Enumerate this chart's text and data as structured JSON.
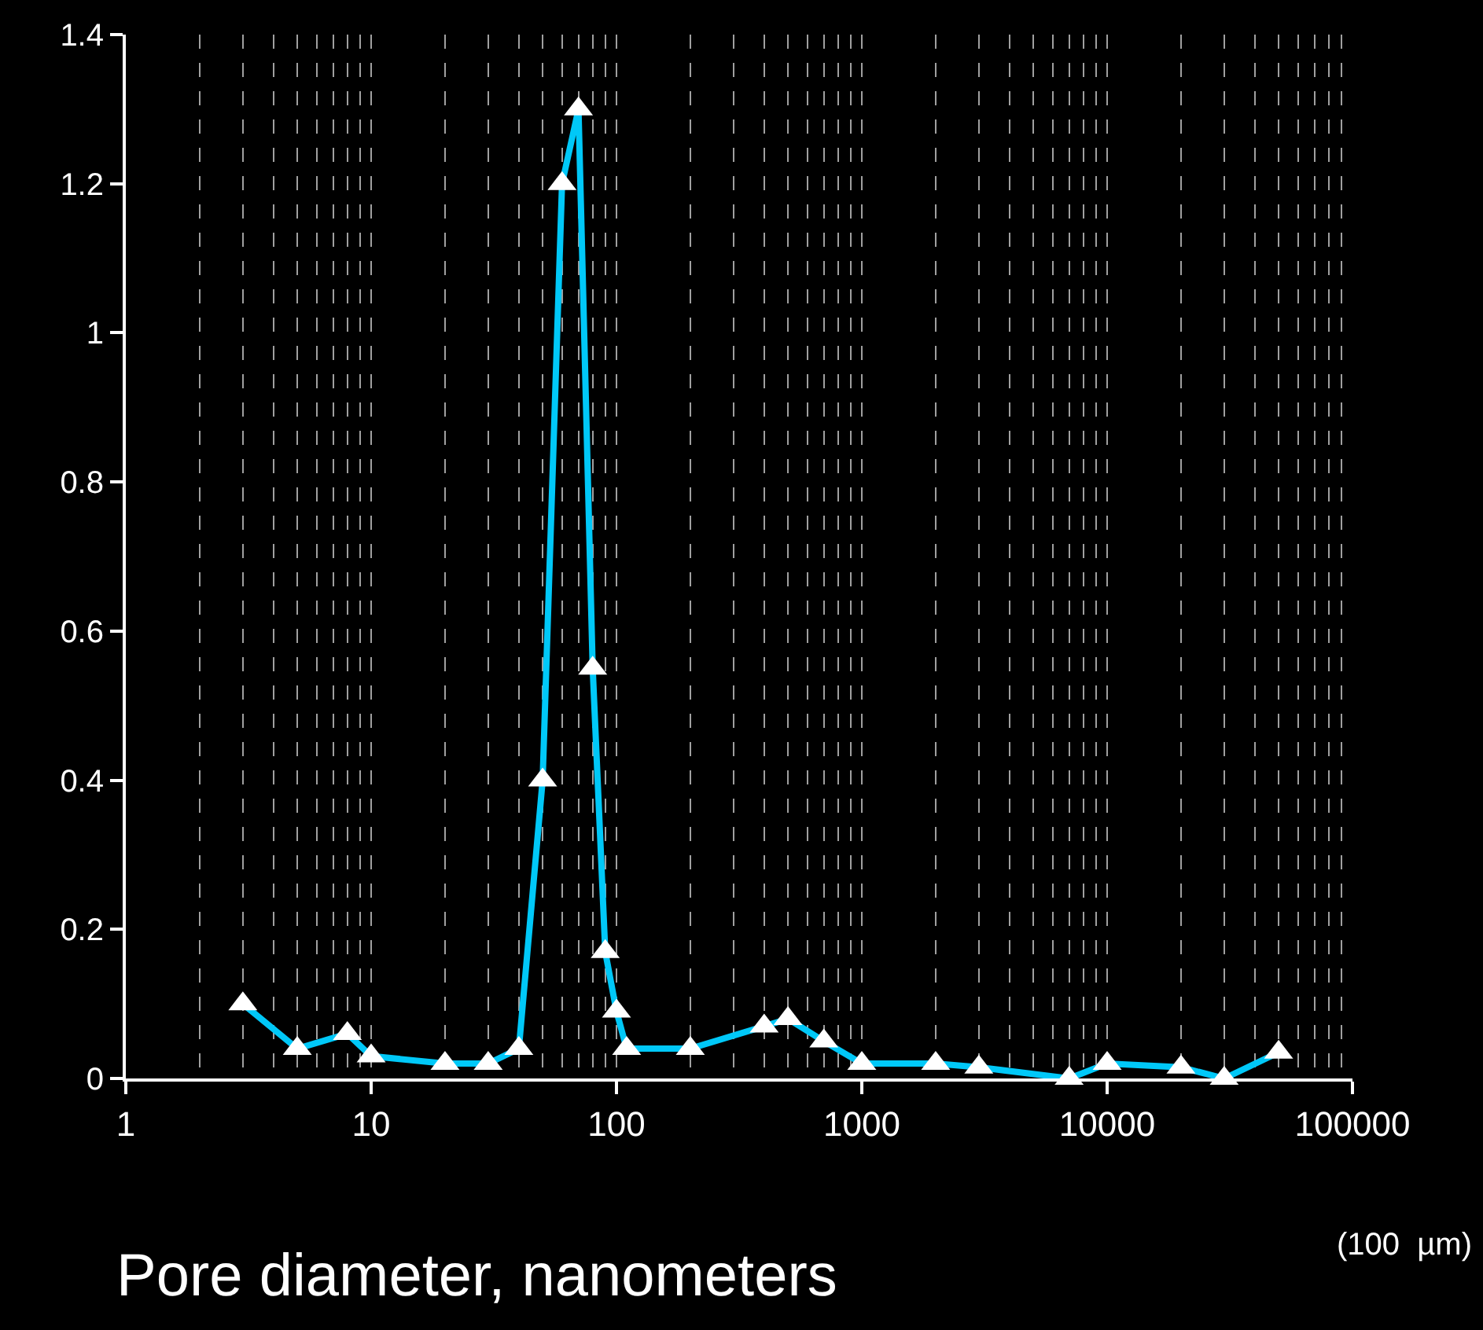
{
  "chart_data": {
    "type": "line",
    "xlabel": "Pore diameter, nanometers",
    "x": [
      3,
      5,
      8,
      10,
      20,
      30,
      40,
      50,
      60,
      70,
      80,
      90,
      100,
      110,
      200,
      400,
      500,
      700,
      1000,
      2000,
      3000,
      7000,
      10000,
      20000,
      30000,
      50000
    ],
    "series": [
      {
        "color": "#00c8f8",
        "values": [
          0.1,
          0.04,
          0.06,
          0.03,
          0.02,
          0.02,
          0.04,
          0.4,
          1.2,
          1.3,
          0.55,
          0.17,
          0.09,
          0.04,
          0.04,
          0.07,
          0.08,
          0.05,
          0.02,
          0.02,
          0.015,
          0,
          0.02,
          0.015,
          0,
          0.035
        ]
      }
    ],
    "log": "x",
    "xlim": [
      1,
      100000
    ],
    "xticks": [
      1,
      10,
      100,
      1000,
      10000,
      100000
    ],
    "ylim": [
      0,
      1.4
    ],
    "yticks": [
      0,
      0.2,
      0.4,
      0.6,
      0.8,
      1,
      1.2,
      1.4
    ],
    "grid": "x",
    "legend": false,
    "marker": "triangle",
    "line_style": "solid",
    "annotations": [
      "(100  µm)"
    ]
  }
}
